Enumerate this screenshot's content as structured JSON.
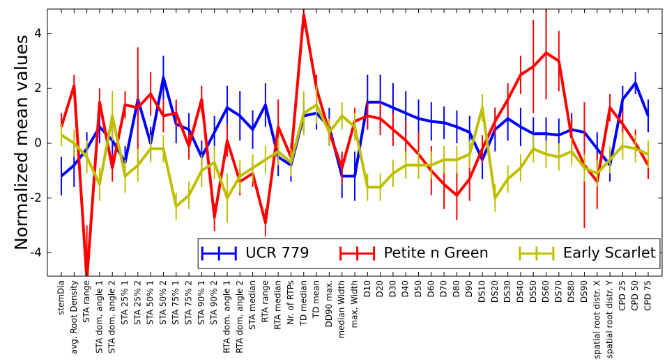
{
  "chart_data": {
    "type": "line",
    "y_label": "Normalized mean values",
    "categories": [
      "stemDia",
      "avg. Root Density",
      "STA range",
      "STA dom. angle 1",
      "STA dom. angle 2",
      "STA 25% 1",
      "STA 25% 2",
      "STA 50% 1",
      "STA 50% 2",
      "STA 75% 1",
      "STA 75% 2",
      "STA 90% 1",
      "STA 90% 2",
      "RTA dom. angle 1",
      "RTA dom. angle 2",
      "STA median",
      "RTA range",
      "RTA median",
      "Nr. of RTPs",
      "TD median",
      "TD mean",
      "DD90 max.",
      "median Width",
      "max. Width",
      "D10",
      "D20",
      "D30",
      "D40",
      "D50",
      "D60",
      "D70",
      "D80",
      "D90",
      "DS10",
      "DS20",
      "DS30",
      "DS40",
      "DS50",
      "DS60",
      "DS70",
      "DS80",
      "DS90",
      "spatial root distr. X",
      "spatial root distr. Y",
      "CPD 25",
      "CPD 50",
      "CPD 75"
    ],
    "series": [
      {
        "name": "UCR 779",
        "color": "#0000ff",
        "values": [
          -1.2,
          -0.8,
          -0.2,
          0.6,
          0.1,
          -0.7,
          1.6,
          0.0,
          2.4,
          0.7,
          0.5,
          -0.5,
          0.4,
          1.3,
          1.0,
          0.5,
          1.4,
          -0.5,
          -0.8,
          1.0,
          1.1,
          0.6,
          -1.2,
          -1.2,
          1.5,
          1.5,
          1.3,
          1.1,
          0.9,
          0.8,
          0.75,
          0.6,
          0.4,
          -0.6,
          0.5,
          0.9,
          0.6,
          0.35,
          0.35,
          0.3,
          0.5,
          0.4,
          -0.2,
          -0.8,
          1.6,
          2.2,
          1.0
        ],
        "errors": [
          0.7,
          0.8,
          0.6,
          0.6,
          0.6,
          0.6,
          0.7,
          0.6,
          0.8,
          0.7,
          0.6,
          0.6,
          0.6,
          0.8,
          0.9,
          0.7,
          0.8,
          0.7,
          0.6,
          0.6,
          0.6,
          0.7,
          0.8,
          0.9,
          1.0,
          1.0,
          0.9,
          0.8,
          0.7,
          0.7,
          0.6,
          0.6,
          0.6,
          0.7,
          0.8,
          0.8,
          0.7,
          0.6,
          0.6,
          0.6,
          0.6,
          0.6,
          0.6,
          0.6,
          0.5,
          0.4,
          0.6
        ]
      },
      {
        "name": "Petite n Green",
        "color": "#ff0000",
        "values": [
          0.6,
          2.1,
          -5.0,
          1.5,
          -0.9,
          1.4,
          1.3,
          1.8,
          1.0,
          1.1,
          -0.1,
          1.6,
          -2.7,
          0.1,
          -1.4,
          -1.1,
          -2.9,
          0.6,
          -0.5,
          4.7,
          2.0,
          0.4,
          -0.9,
          0.8,
          1.0,
          0.9,
          0.5,
          0.1,
          -0.4,
          -1.0,
          -1.5,
          -1.9,
          -1.3,
          -0.2,
          0.8,
          1.6,
          2.5,
          2.8,
          3.3,
          3.0,
          0.2,
          -0.8,
          -1.4,
          1.3,
          0.7,
          0.0,
          -0.8
        ],
        "errors": [
          0.5,
          0.4,
          2.0,
          0.5,
          0.5,
          0.5,
          2.2,
          0.8,
          0.6,
          0.5,
          0.5,
          0.5,
          0.5,
          0.6,
          0.5,
          0.5,
          0.5,
          1.0,
          0.5,
          0.5,
          0.5,
          0.5,
          0.6,
          0.5,
          0.5,
          0.6,
          0.6,
          0.7,
          0.8,
          0.9,
          0.9,
          0.9,
          0.8,
          0.5,
          0.5,
          0.6,
          0.7,
          1.7,
          1.7,
          1.1,
          0.7,
          2.3,
          1.0,
          0.5,
          0.5,
          0.5,
          0.5
        ]
      },
      {
        "name": "Early Scarlet",
        "color": "#bfbf00",
        "values": [
          0.3,
          0.0,
          -0.5,
          -1.5,
          1.0,
          -1.2,
          -0.8,
          -0.2,
          -0.2,
          -2.3,
          -1.9,
          -1.0,
          -0.7,
          -2.0,
          -1.2,
          -0.9,
          -0.6,
          -0.3,
          -0.7,
          1.1,
          1.4,
          0.4,
          1.0,
          0.6,
          -1.6,
          -1.6,
          -1.1,
          -0.8,
          -0.8,
          -0.8,
          -0.6,
          -0.6,
          -0.4,
          1.3,
          -2.0,
          -1.3,
          -0.9,
          -0.2,
          -0.4,
          -0.5,
          -0.3,
          -0.9,
          -1.1,
          -0.6,
          -0.1,
          -0.2,
          -0.4
        ],
        "errors": [
          0.4,
          0.5,
          0.6,
          0.6,
          0.9,
          0.6,
          0.6,
          0.5,
          0.5,
          0.5,
          0.5,
          0.6,
          0.6,
          0.9,
          0.6,
          0.5,
          0.5,
          0.5,
          0.5,
          0.8,
          0.7,
          0.5,
          0.5,
          0.5,
          0.5,
          0.5,
          0.5,
          0.5,
          0.5,
          0.5,
          0.5,
          0.5,
          0.5,
          0.5,
          0.5,
          0.5,
          0.5,
          0.5,
          0.5,
          0.5,
          0.5,
          0.5,
          0.5,
          0.5,
          0.5,
          0.5,
          0.5
        ]
      }
    ],
    "ylim": [
      -4.85,
      4.9
    ],
    "yticks": [
      -4,
      -2,
      0,
      2,
      4
    ],
    "grid": false,
    "legend": "lower right"
  }
}
